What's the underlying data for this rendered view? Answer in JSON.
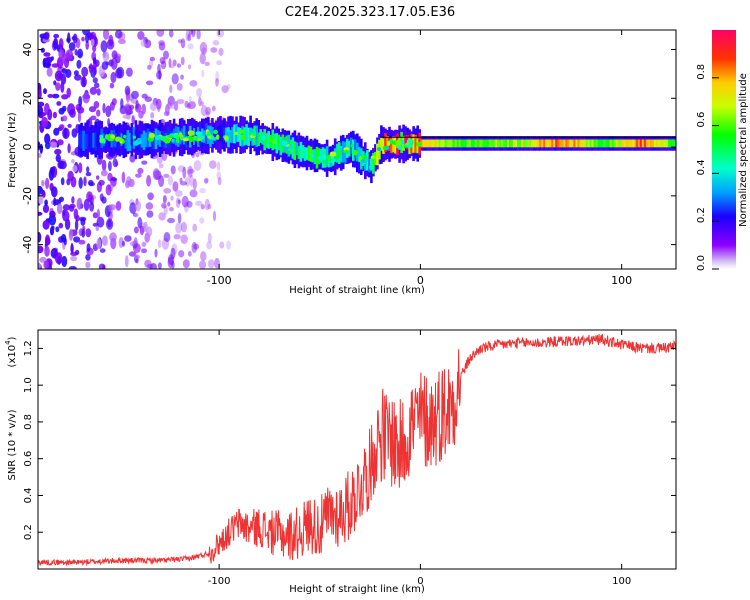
{
  "title": "C2E4.2025.323.17.05.E36",
  "chart_data": [
    {
      "type": "heatmap",
      "xlabel": "Height of straight line (km)",
      "ylabel": "Frequency (Hz)",
      "xlim": [
        -190,
        127
      ],
      "ylim": [
        -50,
        48
      ],
      "xticks": [
        -100,
        0,
        100
      ],
      "xtick_labels": [
        "-100",
        "0",
        "100"
      ],
      "yticks": [
        -40,
        -20,
        0,
        20,
        40
      ],
      "ytick_labels": [
        "-40",
        "-20",
        "0",
        "20",
        "40"
      ],
      "colorbar": {
        "label": "Normalized spectral amplitude",
        "range": [
          0,
          1
        ],
        "ticks": [
          0,
          0.2,
          0.4,
          0.6,
          0.8
        ],
        "tick_labels": [
          "0.0",
          "0.2",
          "0.4",
          "0.6",
          "0.8"
        ]
      },
      "ridge": [
        {
          "x": -160,
          "freq": 3,
          "amp": 0.25
        },
        {
          "x": -140,
          "freq": 3,
          "amp": 0.3
        },
        {
          "x": -120,
          "freq": 4,
          "amp": 0.3
        },
        {
          "x": -100,
          "freq": 5,
          "amp": 0.3
        },
        {
          "x": -85,
          "freq": 5,
          "amp": 0.45
        },
        {
          "x": -70,
          "freq": 1,
          "amp": 0.5
        },
        {
          "x": -55,
          "freq": -3,
          "amp": 0.5
        },
        {
          "x": -45,
          "freq": -5,
          "amp": 0.45
        },
        {
          "x": -35,
          "freq": 0,
          "amp": 0.4
        },
        {
          "x": -25,
          "freq": -8,
          "amp": 0.4
        },
        {
          "x": -20,
          "freq": 1,
          "amp": 0.8
        },
        {
          "x": 0,
          "freq": 1.5,
          "amp": 0.85
        },
        {
          "x": 20,
          "freq": 1.5,
          "amp": 0.6
        },
        {
          "x": 50,
          "freq": 1.5,
          "amp": 0.7
        },
        {
          "x": 70,
          "freq": 1.5,
          "amp": 0.9
        },
        {
          "x": 90,
          "freq": 1.5,
          "amp": 0.6
        },
        {
          "x": 110,
          "freq": 1.5,
          "amp": 0.9
        },
        {
          "x": 125,
          "freq": 1.5,
          "amp": 0.6
        }
      ]
    },
    {
      "type": "line",
      "xlabel": "Height of straight line (km)",
      "ylabel": "SNR (10 * v/v)",
      "multiplier_label": "(x10",
      "multiplier_exp": "4",
      "multiplier_close": ")",
      "xlim": [
        -190,
        127
      ],
      "ylim": [
        0,
        1.3
      ],
      "xticks": [
        -100,
        0,
        100
      ],
      "xtick_labels": [
        "-100",
        "0",
        "100"
      ],
      "yticks": [
        0.2,
        0.4,
        0.6,
        0.8,
        1.0,
        1.2
      ],
      "ytick_labels": [
        "0.2",
        "0.4",
        "0.6",
        "0.8",
        "1.0",
        "1.2"
      ],
      "series": [
        {
          "name": "SNR",
          "color": "#ee3333",
          "x": [
            -190,
            -170,
            -150,
            -130,
            -115,
            -105,
            -95,
            -90,
            -85,
            -80,
            -75,
            -70,
            -65,
            -60,
            -55,
            -50,
            -45,
            -40,
            -35,
            -30,
            -25,
            -20,
            -17,
            -15,
            -10,
            -5,
            0,
            5,
            10,
            15,
            20,
            25,
            30,
            35,
            40,
            50,
            60,
            70,
            80,
            90,
            100,
            110,
            120,
            127
          ],
          "y": [
            0.03,
            0.03,
            0.04,
            0.04,
            0.05,
            0.08,
            0.2,
            0.25,
            0.22,
            0.23,
            0.2,
            0.19,
            0.18,
            0.2,
            0.25,
            0.22,
            0.3,
            0.3,
            0.35,
            0.45,
            0.55,
            0.75,
            0.7,
            0.72,
            0.65,
            0.78,
            0.82,
            0.8,
            0.85,
            0.88,
            1.05,
            1.15,
            1.2,
            1.21,
            1.22,
            1.23,
            1.23,
            1.24,
            1.24,
            1.25,
            1.22,
            1.2,
            1.2,
            1.21
          ]
        }
      ]
    }
  ]
}
